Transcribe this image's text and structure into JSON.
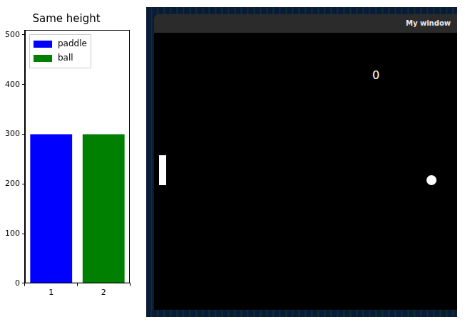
{
  "chart_data": {
    "type": "bar",
    "title": "Same height",
    "categories": [
      "1",
      "2"
    ],
    "series": [
      {
        "name": "paddle",
        "color": "#0000ff",
        "values": [
          300,
          null
        ]
      },
      {
        "name": "ball",
        "color": "#008000",
        "values": [
          null,
          300
        ]
      }
    ],
    "ylim": [
      0,
      510
    ],
    "yticks": [
      0,
      100,
      200,
      300,
      400,
      500
    ],
    "grid": false,
    "legend": "upper left"
  },
  "screenshot": {
    "window_title": "My window",
    "score": 0
  }
}
